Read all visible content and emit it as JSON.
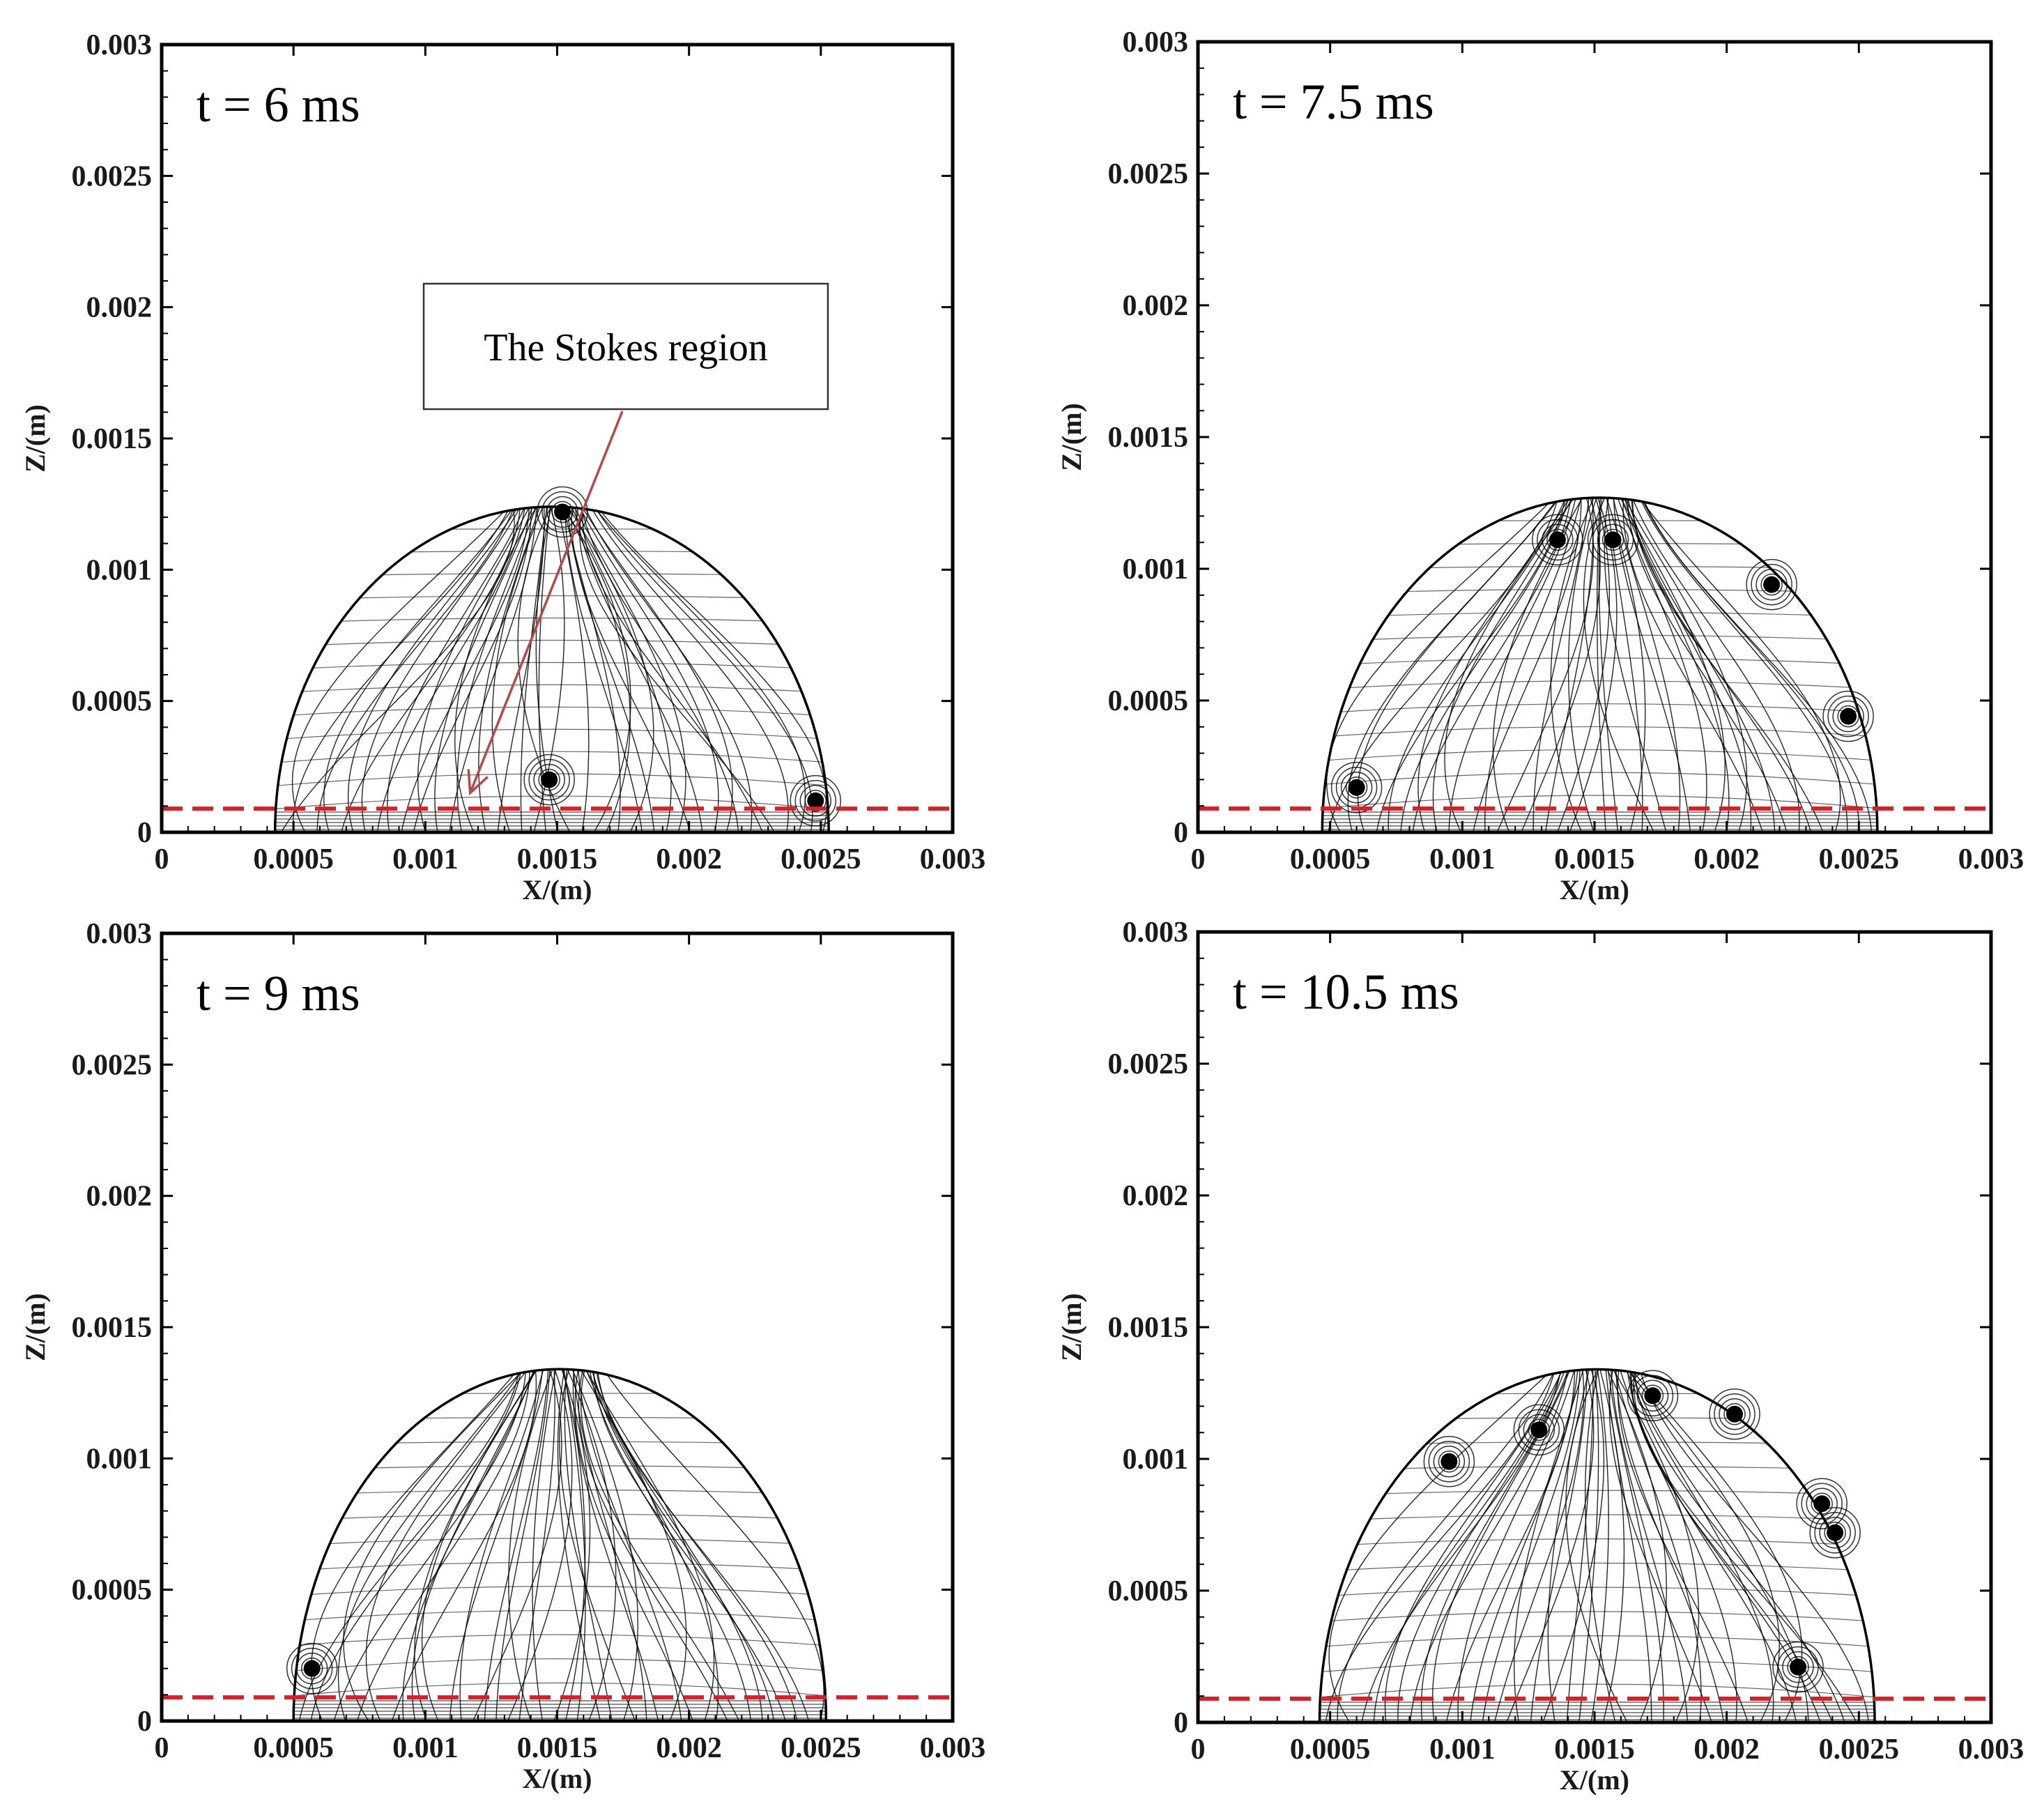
{
  "chart_data": [
    {
      "type": "streamline",
      "panel_label": "t = 6 ms",
      "xlabel": "X/(m)",
      "ylabel": "Z/(m)",
      "xlim": [
        0,
        0.003
      ],
      "ylim": [
        0,
        0.003
      ],
      "x_ticks": [
        "0",
        "0.0005",
        "0.001",
        "0.0015",
        "0.002",
        "0.0025",
        "0.003"
      ],
      "y_ticks": [
        "0",
        "0.0005",
        "0.001",
        "0.0015",
        "0.002",
        "0.0025",
        "0.003"
      ],
      "droplet": {
        "x_left": 0.00043,
        "x_right": 0.00253,
        "height": 0.00124
      },
      "reference_line_z": 9e-05,
      "vortices": [
        [
          0.00147,
          0.0002
        ],
        [
          0.00248,
          0.00012
        ],
        [
          0.00152,
          0.00122
        ]
      ],
      "annotation": {
        "text": "The Stokes region",
        "target": [
          0.00117,
          0.00015
        ]
      }
    },
    {
      "type": "streamline",
      "panel_label": "t = 7.5 ms",
      "xlabel": "X/(m)",
      "ylabel": "Z/(m)",
      "xlim": [
        0,
        0.003
      ],
      "ylim": [
        0,
        0.003
      ],
      "x_ticks": [
        "0",
        "0.0005",
        "0.001",
        "0.0015",
        "0.002",
        "0.0025",
        "0.003"
      ],
      "y_ticks": [
        "0",
        "0.0005",
        "0.001",
        "0.0015",
        "0.002",
        "0.0025",
        "0.003"
      ],
      "droplet": {
        "x_left": 0.00047,
        "x_right": 0.00257,
        "height": 0.00127
      },
      "reference_line_z": 9e-05,
      "vortices": [
        [
          0.00136,
          0.00111
        ],
        [
          0.00157,
          0.00111
        ],
        [
          0.00217,
          0.00094
        ],
        [
          0.00246,
          0.00044
        ],
        [
          0.0006,
          0.00017
        ]
      ]
    },
    {
      "type": "streamline",
      "panel_label": "t = 9 ms",
      "xlabel": "X/(m)",
      "ylabel": "Z/(m)",
      "xlim": [
        0,
        0.003
      ],
      "ylim": [
        0,
        0.003
      ],
      "x_ticks": [
        "0",
        "0.0005",
        "0.001",
        "0.0015",
        "0.002",
        "0.0025",
        "0.003"
      ],
      "y_ticks": [
        "0",
        "0.0005",
        "0.001",
        "0.0015",
        "0.002",
        "0.0025",
        "0.003"
      ],
      "droplet": {
        "x_left": 0.0005,
        "x_right": 0.00252,
        "height": 0.00134
      },
      "reference_line_z": 9e-05,
      "vortices": [
        [
          0.00057,
          0.0002
        ]
      ]
    },
    {
      "type": "streamline",
      "panel_label": "t = 10.5 ms",
      "xlabel": "X/(m)",
      "ylabel": "Z/(m)",
      "xlim": [
        0,
        0.003
      ],
      "ylim": [
        0,
        0.003
      ],
      "x_ticks": [
        "0",
        "0.0005",
        "0.001",
        "0.0015",
        "0.002",
        "0.0025",
        "0.003"
      ],
      "y_ticks": [
        "0",
        "0.0005",
        "0.001",
        "0.0015",
        "0.002",
        "0.0025",
        "0.003"
      ],
      "droplet": {
        "x_left": 0.00046,
        "x_right": 0.00256,
        "height": 0.00134
      },
      "reference_line_z": 9e-05,
      "vortices": [
        [
          0.00095,
          0.00099
        ],
        [
          0.00129,
          0.00111
        ],
        [
          0.00172,
          0.00124
        ],
        [
          0.00203,
          0.00117
        ],
        [
          0.00236,
          0.00083
        ],
        [
          0.00241,
          0.00072
        ],
        [
          0.00227,
          0.00021
        ]
      ]
    }
  ],
  "colors": {
    "reference_line": "#d2232a",
    "annotation_arrow": "#b5484a",
    "streamline": "#000000",
    "frame": "#000000"
  }
}
